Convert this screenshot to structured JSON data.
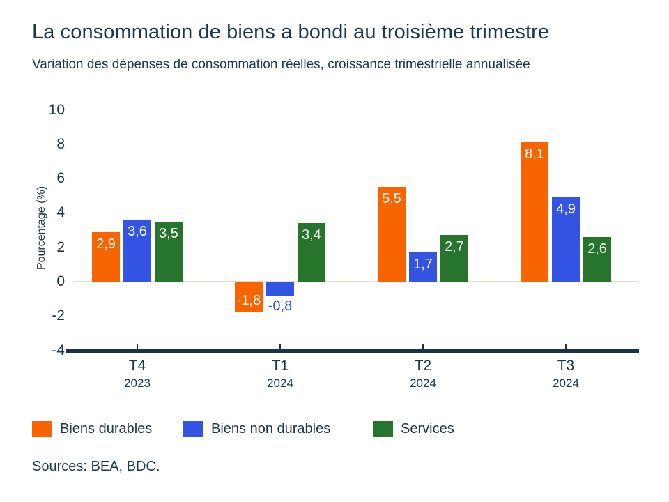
{
  "header": {
    "title": "La consommation de biens a bondi au troisième trimestre",
    "subtitle": "Variation des dépenses de consommation réelles, croissance trimestrielle annualisée"
  },
  "chart_data": {
    "type": "bar",
    "categories": [
      "T4",
      "T1",
      "T2",
      "T3"
    ],
    "category_years": [
      "2023",
      "2024",
      "2024",
      "2024"
    ],
    "series": [
      {
        "name": "Biens durables",
        "color": "#f76400",
        "values": [
          2.9,
          -1.8,
          5.5,
          8.1
        ]
      },
      {
        "name": "Biens non durables",
        "color": "#3354e3",
        "values": [
          3.6,
          -0.8,
          1.7,
          4.9
        ]
      },
      {
        "name": "Services",
        "color": "#27742c",
        "values": [
          3.5,
          3.4,
          2.7,
          2.6
        ]
      }
    ],
    "title": "La consommation de biens a bondi au troisième trimestre",
    "xlabel": "",
    "ylabel": "Pourcentage (%)",
    "ylim": [
      -4,
      10
    ],
    "yticks": [
      10,
      8,
      6,
      4,
      2,
      0,
      -2,
      -4
    ],
    "grid": false,
    "baseline_color": "#e8ddd1",
    "axis_color": "#1b3445",
    "text_color": "#1d3849",
    "value_label_color_inside": "#ffffff",
    "decimal_separator": ",",
    "legend_position": "bottom"
  },
  "footer": {
    "sources": "Sources: BEA, BDC."
  }
}
